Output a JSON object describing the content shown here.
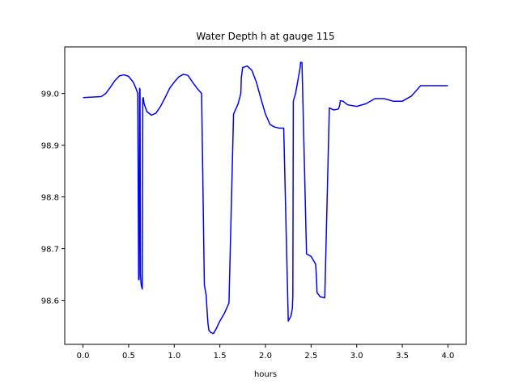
{
  "chart_data": {
    "type": "line",
    "title": "Water Depth h at gauge 115",
    "xlabel": "hours",
    "ylabel": "",
    "xlim": [
      -0.2,
      4.2
    ],
    "ylim": [
      98.515,
      99.09
    ],
    "xticks": [
      0.0,
      0.5,
      1.0,
      1.5,
      2.0,
      2.5,
      3.0,
      3.5,
      4.0
    ],
    "xtick_labels": [
      "0.0",
      "0.5",
      "1.0",
      "1.5",
      "2.0",
      "2.5",
      "3.0",
      "3.5",
      "4.0"
    ],
    "yticks": [
      98.6,
      98.7,
      98.8,
      98.9,
      99.0
    ],
    "ytick_labels": [
      "98.6",
      "98.7",
      "98.8",
      "98.9",
      "99.0"
    ],
    "grid": false,
    "series": [
      {
        "color": "#0000ff",
        "x": [
          0.0,
          0.1,
          0.2,
          0.25,
          0.3,
          0.35,
          0.4,
          0.45,
          0.5,
          0.55,
          0.58,
          0.6,
          0.61,
          0.615,
          0.62,
          0.625,
          0.63,
          0.635,
          0.64,
          0.65,
          0.655,
          0.66,
          0.67,
          0.7,
          0.75,
          0.8,
          0.85,
          0.9,
          0.95,
          1.0,
          1.05,
          1.1,
          1.15,
          1.2,
          1.25,
          1.3,
          1.33,
          1.35,
          1.36,
          1.37,
          1.38,
          1.4,
          1.43,
          1.46,
          1.5,
          1.55,
          1.6,
          1.65,
          1.7,
          1.73,
          1.735,
          1.75,
          1.8,
          1.85,
          1.9,
          1.95,
          2.0,
          2.05,
          2.1,
          2.15,
          2.2,
          2.25,
          2.28,
          2.295,
          2.3,
          2.305,
          2.33,
          2.36,
          2.38,
          2.385,
          2.4,
          2.45,
          2.5,
          2.55,
          2.56,
          2.565,
          2.6,
          2.65,
          2.7,
          2.75,
          2.8,
          2.815,
          2.82,
          2.85,
          2.9,
          3.0,
          3.1,
          3.2,
          3.3,
          3.4,
          3.5,
          3.6,
          3.7,
          3.8,
          3.9,
          4.0
        ],
        "y": [
          98.992,
          98.993,
          98.994,
          99.0,
          99.012,
          99.025,
          99.034,
          99.036,
          99.033,
          99.022,
          99.01,
          99.0,
          98.64,
          98.64,
          99.01,
          99.008,
          98.65,
          98.635,
          98.628,
          98.622,
          98.99,
          98.992,
          98.98,
          98.965,
          98.958,
          98.962,
          98.975,
          98.992,
          99.01,
          99.022,
          99.032,
          99.037,
          99.035,
          99.022,
          99.01,
          99.0,
          98.63,
          98.61,
          98.58,
          98.555,
          98.542,
          98.538,
          98.536,
          98.545,
          98.56,
          98.575,
          98.595,
          98.96,
          98.98,
          99.0,
          99.03,
          99.05,
          99.053,
          99.045,
          99.022,
          98.99,
          98.96,
          98.94,
          98.935,
          98.933,
          98.933,
          98.56,
          98.57,
          98.585,
          98.61,
          98.985,
          99.0,
          99.03,
          99.05,
          99.06,
          99.06,
          98.69,
          98.685,
          98.67,
          98.64,
          98.615,
          98.607,
          98.605,
          98.972,
          98.968,
          98.97,
          98.978,
          98.986,
          98.985,
          98.978,
          98.975,
          98.98,
          98.99,
          98.99,
          98.985,
          98.985,
          98.995,
          99.015,
          99.015,
          99.015,
          99.015
        ]
      }
    ]
  }
}
